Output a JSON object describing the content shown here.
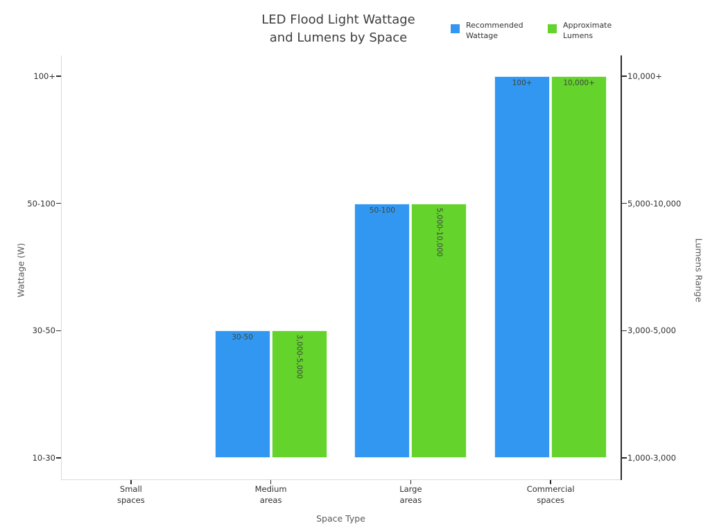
{
  "title": {
    "lines": [
      "LED Flood Light Wattage",
      "and Lumens by Space"
    ]
  },
  "legend": {
    "position": "top-right",
    "items": [
      {
        "name": "Recommended Wattage",
        "label": "Recommended\nWattage",
        "color": "#3297f0"
      },
      {
        "name": "Approximate Lumens",
        "label": "Approximate\nLumens",
        "color": "#64d32c"
      }
    ]
  },
  "axes": {
    "x": {
      "label": "Space Type",
      "tick_labels": [
        "Small\nspaces",
        "Medium\nareas",
        "Large\nareas",
        "Commercial\nspaces"
      ]
    },
    "y_left": {
      "label": "Wattage (W)",
      "tick_labels": [
        "10-30",
        "30-50",
        "50-100",
        "100+"
      ]
    },
    "y_right": {
      "label": "Lumens Range",
      "tick_labels": [
        "1,000-3,000",
        "3,000-5,000",
        "5,000-10,000",
        "10,000+"
      ]
    }
  },
  "chart_data": {
    "type": "bar",
    "title": "LED Flood Light Wattage and Lumens by Space",
    "xlabel": "Space Type",
    "ylabel_left": "Wattage (W)",
    "ylabel_right": "Lumens Range",
    "categories": [
      "Small spaces",
      "Medium areas",
      "Large areas",
      "Commercial spaces"
    ],
    "y_ticks_left": [
      "10-30",
      "30-50",
      "50-100",
      "100+"
    ],
    "y_ticks_right": [
      "1,000-3,000",
      "3,000-5,000",
      "5,000-10,000",
      "10,000+"
    ],
    "grid": false,
    "legend_position": "top-right",
    "series": [
      {
        "name": "Recommended Wattage",
        "axis": "left",
        "color": "#3297f0",
        "values": [
          "10-30",
          "30-50",
          "50-100",
          "100+"
        ],
        "levels": [
          0,
          1,
          2,
          3
        ],
        "bar_labels": [
          "",
          "30-50",
          "50-100",
          "100+"
        ],
        "label_rotation": [
          0,
          0,
          0,
          0
        ]
      },
      {
        "name": "Approximate Lumens",
        "axis": "right",
        "color": "#64d32c",
        "values": [
          "1,000-3,000",
          "3,000-5,000",
          "5,000-10,000",
          "10,000+"
        ],
        "levels": [
          0,
          1,
          2,
          3
        ],
        "bar_labels": [
          "",
          "3,000-5,000",
          "5,000-10,000",
          "10,000+"
        ],
        "label_rotation": [
          0,
          90,
          90,
          0
        ]
      }
    ]
  }
}
